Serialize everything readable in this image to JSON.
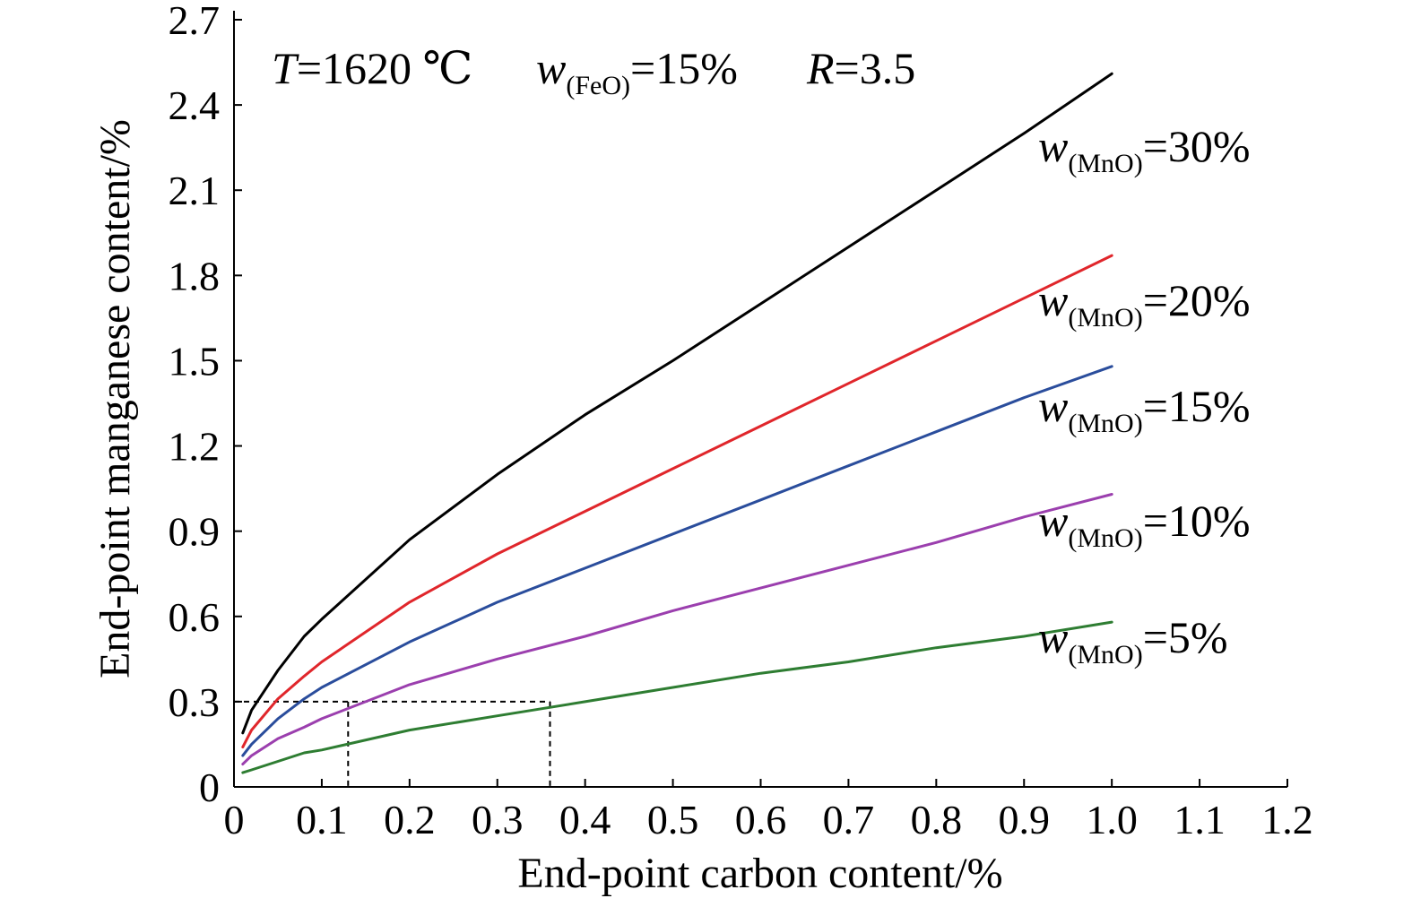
{
  "chart_data": {
    "type": "line",
    "xlabel": "End-point carbon content/%",
    "ylabel": "End-point manganese content/%",
    "xlim": [
      0,
      1.2
    ],
    "ylim": [
      0,
      2.7
    ],
    "x_ticks": [
      "0",
      "0.1",
      "0.2",
      "0.3",
      "0.4",
      "0.5",
      "0.6",
      "0.7",
      "0.8",
      "0.9",
      "1.0",
      "1.1",
      "1.2"
    ],
    "y_ticks": [
      "0",
      "0.3",
      "0.6",
      "0.9",
      "1.2",
      "1.5",
      "1.8",
      "2.1",
      "2.4",
      "2.7"
    ],
    "grid": false,
    "conditions": {
      "T": {
        "symbol": "T",
        "rest": "=1620 ℃"
      },
      "w_feo": {
        "symbol": "w",
        "sub": "(FeO)",
        "rest": "=15%"
      },
      "R": {
        "symbol": "R",
        "rest": "=3.5"
      }
    },
    "series": [
      {
        "label_sub": "(MnO)",
        "label_rest": "=30%",
        "color": "#000000",
        "x": [
          0.01,
          0.02,
          0.05,
          0.08,
          0.1,
          0.2,
          0.3,
          0.4,
          0.5,
          0.6,
          0.7,
          0.8,
          0.9,
          1.0
        ],
        "y": [
          0.19,
          0.27,
          0.41,
          0.53,
          0.59,
          0.87,
          1.1,
          1.31,
          1.5,
          1.7,
          1.9,
          2.1,
          2.3,
          2.51
        ]
      },
      {
        "label_sub": "(MnO)",
        "label_rest": "=20%",
        "color": "#e0262b",
        "x": [
          0.01,
          0.02,
          0.05,
          0.08,
          0.1,
          0.2,
          0.3,
          0.4,
          0.5,
          0.6,
          0.7,
          0.8,
          0.9,
          1.0
        ],
        "y": [
          0.14,
          0.2,
          0.31,
          0.39,
          0.44,
          0.65,
          0.82,
          0.97,
          1.12,
          1.27,
          1.42,
          1.57,
          1.72,
          1.87
        ]
      },
      {
        "label_sub": "(MnO)",
        "label_rest": "=15%",
        "color": "#2a4d9c",
        "x": [
          0.01,
          0.02,
          0.05,
          0.08,
          0.1,
          0.2,
          0.3,
          0.4,
          0.5,
          0.6,
          0.7,
          0.8,
          0.9,
          1.0
        ],
        "y": [
          0.11,
          0.15,
          0.24,
          0.31,
          0.35,
          0.51,
          0.65,
          0.77,
          0.89,
          1.01,
          1.13,
          1.25,
          1.37,
          1.48
        ]
      },
      {
        "label_sub": "(MnO)",
        "label_rest": "=10%",
        "color": "#9b3fae",
        "x": [
          0.01,
          0.02,
          0.05,
          0.08,
          0.1,
          0.2,
          0.3,
          0.4,
          0.5,
          0.6,
          0.7,
          0.8,
          0.9,
          1.0
        ],
        "y": [
          0.08,
          0.11,
          0.17,
          0.21,
          0.24,
          0.36,
          0.45,
          0.53,
          0.62,
          0.7,
          0.78,
          0.86,
          0.95,
          1.03
        ]
      },
      {
        "label_sub": "(MnO)",
        "label_rest": "=5%",
        "color": "#2e7d32",
        "x": [
          0.01,
          0.02,
          0.05,
          0.08,
          0.1,
          0.2,
          0.3,
          0.4,
          0.5,
          0.6,
          0.7,
          0.8,
          0.9,
          1.0
        ],
        "y": [
          0.05,
          0.06,
          0.09,
          0.12,
          0.13,
          0.2,
          0.25,
          0.3,
          0.35,
          0.4,
          0.44,
          0.49,
          0.53,
          0.58
        ]
      }
    ],
    "guide_lines": [
      {
        "x": 0.13,
        "y": 0.3
      },
      {
        "x": 0.36,
        "y": 0.3
      }
    ]
  }
}
